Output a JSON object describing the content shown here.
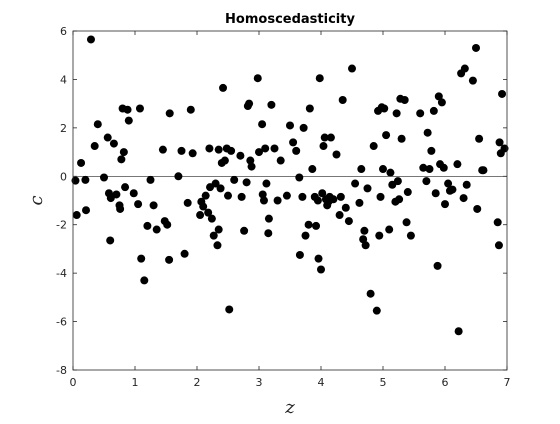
{
  "chart_data": {
    "type": "scatter",
    "title": "Homoscedasticity",
    "xlabel": "z",
    "ylabel": "c",
    "xlim": [
      0,
      7
    ],
    "ylim": [
      -8,
      6
    ],
    "xticks": [
      0,
      1,
      2,
      3,
      4,
      5,
      6,
      7
    ],
    "yticks": [
      -8,
      -6,
      -4,
      -2,
      0,
      2,
      4,
      6
    ],
    "xtick_labels": [
      "0",
      "1",
      "2",
      "3",
      "4",
      "5",
      "6",
      "7"
    ],
    "ytick_labels": [
      "-8",
      "-6",
      "-4",
      "-2",
      "0",
      "2",
      "4",
      "6"
    ],
    "reference_line_y": 0,
    "grid": false,
    "marker_color": "#000000",
    "points": [
      [
        0.04,
        -0.18
      ],
      [
        0.06,
        -1.6
      ],
      [
        0.13,
        0.55
      ],
      [
        0.2,
        -0.15
      ],
      [
        0.21,
        -1.4
      ],
      [
        0.29,
        5.65
      ],
      [
        0.35,
        1.25
      ],
      [
        0.4,
        2.15
      ],
      [
        0.5,
        -0.05
      ],
      [
        0.56,
        1.6
      ],
      [
        0.58,
        -0.7
      ],
      [
        0.6,
        -2.65
      ],
      [
        0.61,
        -0.9
      ],
      [
        0.66,
        1.35
      ],
      [
        0.7,
        -0.75
      ],
      [
        0.75,
        -1.2
      ],
      [
        0.76,
        -1.35
      ],
      [
        0.78,
        0.7
      ],
      [
        0.8,
        2.8
      ],
      [
        0.82,
        1.0
      ],
      [
        0.84,
        -0.45
      ],
      [
        0.88,
        2.75
      ],
      [
        0.9,
        2.3
      ],
      [
        0.98,
        -0.7
      ],
      [
        1.05,
        -1.15
      ],
      [
        1.08,
        2.8
      ],
      [
        1.1,
        -3.4
      ],
      [
        1.15,
        -4.3
      ],
      [
        1.2,
        -2.05
      ],
      [
        1.25,
        -0.15
      ],
      [
        1.3,
        -1.2
      ],
      [
        1.35,
        -2.2
      ],
      [
        1.45,
        1.1
      ],
      [
        1.48,
        -1.85
      ],
      [
        1.52,
        -2.0
      ],
      [
        1.55,
        -3.45
      ],
      [
        1.56,
        2.6
      ],
      [
        1.7,
        0.0
      ],
      [
        1.75,
        1.05
      ],
      [
        1.8,
        -3.2
      ],
      [
        1.85,
        -1.1
      ],
      [
        1.9,
        2.75
      ],
      [
        1.93,
        0.95
      ],
      [
        2.05,
        -1.6
      ],
      [
        2.07,
        -1.05
      ],
      [
        2.1,
        -1.25
      ],
      [
        2.14,
        -0.8
      ],
      [
        2.18,
        -1.5
      ],
      [
        2.2,
        1.15
      ],
      [
        2.21,
        -0.45
      ],
      [
        2.24,
        -1.75
      ],
      [
        2.27,
        -2.45
      ],
      [
        2.3,
        -0.3
      ],
      [
        2.33,
        -2.85
      ],
      [
        2.35,
        -2.2
      ],
      [
        2.35,
        1.1
      ],
      [
        2.38,
        -0.5
      ],
      [
        2.4,
        0.55
      ],
      [
        2.42,
        3.65
      ],
      [
        2.45,
        0.65
      ],
      [
        2.48,
        1.15
      ],
      [
        2.5,
        -0.8
      ],
      [
        2.52,
        -5.5
      ],
      [
        2.55,
        1.05
      ],
      [
        2.6,
        -0.15
      ],
      [
        2.7,
        0.85
      ],
      [
        2.72,
        -0.85
      ],
      [
        2.76,
        -2.25
      ],
      [
        2.8,
        -0.25
      ],
      [
        2.82,
        2.9
      ],
      [
        2.84,
        3.0
      ],
      [
        2.86,
        0.65
      ],
      [
        2.88,
        0.4
      ],
      [
        2.98,
        4.05
      ],
      [
        3.0,
        1.0
      ],
      [
        3.05,
        2.15
      ],
      [
        3.06,
        -0.75
      ],
      [
        3.08,
        -1.0
      ],
      [
        3.1,
        1.15
      ],
      [
        3.12,
        -0.3
      ],
      [
        3.15,
        -2.35
      ],
      [
        3.16,
        -1.75
      ],
      [
        3.2,
        2.95
      ],
      [
        3.25,
        1.15
      ],
      [
        3.3,
        -1.0
      ],
      [
        3.35,
        0.65
      ],
      [
        3.45,
        -0.8
      ],
      [
        3.5,
        2.1
      ],
      [
        3.55,
        1.4
      ],
      [
        3.6,
        1.05
      ],
      [
        3.65,
        -0.05
      ],
      [
        3.66,
        -3.25
      ],
      [
        3.7,
        -0.85
      ],
      [
        3.72,
        2.0
      ],
      [
        3.75,
        -2.45
      ],
      [
        3.8,
        -2.0
      ],
      [
        3.82,
        2.8
      ],
      [
        3.86,
        0.3
      ],
      [
        3.9,
        -0.85
      ],
      [
        3.92,
        -2.05
      ],
      [
        3.95,
        -1.0
      ],
      [
        3.96,
        -3.4
      ],
      [
        3.98,
        4.05
      ],
      [
        4.0,
        -3.85
      ],
      [
        4.02,
        -0.7
      ],
      [
        4.04,
        1.25
      ],
      [
        4.06,
        1.6
      ],
      [
        4.08,
        -0.95
      ],
      [
        4.1,
        -1.2
      ],
      [
        4.12,
        -1.05
      ],
      [
        4.14,
        -0.85
      ],
      [
        4.16,
        1.6
      ],
      [
        4.2,
        -0.95
      ],
      [
        4.25,
        0.9
      ],
      [
        4.3,
        -1.6
      ],
      [
        4.32,
        -0.85
      ],
      [
        4.35,
        3.15
      ],
      [
        4.4,
        -1.3
      ],
      [
        4.45,
        -1.85
      ],
      [
        4.5,
        4.45
      ],
      [
        4.55,
        -0.3
      ],
      [
        4.62,
        -1.1
      ],
      [
        4.65,
        0.3
      ],
      [
        4.68,
        -2.6
      ],
      [
        4.7,
        -2.25
      ],
      [
        4.72,
        -2.85
      ],
      [
        4.75,
        -0.5
      ],
      [
        4.8,
        -4.85
      ],
      [
        4.85,
        1.25
      ],
      [
        4.9,
        -5.55
      ],
      [
        4.92,
        2.7
      ],
      [
        4.94,
        -2.45
      ],
      [
        4.96,
        -0.85
      ],
      [
        4.98,
        2.85
      ],
      [
        5.0,
        0.3
      ],
      [
        5.02,
        2.8
      ],
      [
        5.05,
        1.7
      ],
      [
        5.1,
        -2.2
      ],
      [
        5.12,
        0.15
      ],
      [
        5.15,
        -0.35
      ],
      [
        5.2,
        -1.05
      ],
      [
        5.22,
        2.6
      ],
      [
        5.24,
        -0.2
      ],
      [
        5.26,
        -0.95
      ],
      [
        5.28,
        3.2
      ],
      [
        5.3,
        1.55
      ],
      [
        5.35,
        3.15
      ],
      [
        5.38,
        -1.9
      ],
      [
        5.4,
        -0.65
      ],
      [
        5.45,
        -2.45
      ],
      [
        5.6,
        2.6
      ],
      [
        5.65,
        0.35
      ],
      [
        5.7,
        -0.2
      ],
      [
        5.72,
        1.8
      ],
      [
        5.75,
        0.3
      ],
      [
        5.78,
        1.05
      ],
      [
        5.82,
        2.7
      ],
      [
        5.85,
        -0.7
      ],
      [
        5.88,
        -3.7
      ],
      [
        5.9,
        3.3
      ],
      [
        5.92,
        0.5
      ],
      [
        5.95,
        3.05
      ],
      [
        5.98,
        0.35
      ],
      [
        6.0,
        -1.15
      ],
      [
        6.05,
        -0.3
      ],
      [
        6.08,
        -0.6
      ],
      [
        6.12,
        -0.55
      ],
      [
        6.2,
        0.5
      ],
      [
        6.22,
        -6.4
      ],
      [
        6.26,
        4.25
      ],
      [
        6.3,
        -0.9
      ],
      [
        6.32,
        4.45
      ],
      [
        6.35,
        -0.35
      ],
      [
        6.45,
        3.95
      ],
      [
        6.5,
        5.3
      ],
      [
        6.52,
        -1.35
      ],
      [
        6.55,
        1.55
      ],
      [
        6.6,
        0.25
      ],
      [
        6.62,
        0.25
      ],
      [
        6.85,
        -1.9
      ],
      [
        6.87,
        -2.85
      ],
      [
        6.88,
        1.4
      ],
      [
        6.9,
        0.95
      ],
      [
        6.92,
        3.4
      ],
      [
        6.96,
        1.15
      ]
    ]
  }
}
